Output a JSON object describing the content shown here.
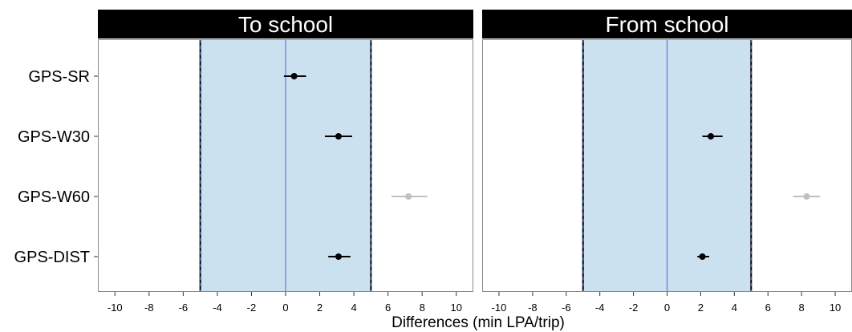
{
  "chart_data": {
    "type": "scatter",
    "subtype": "forest-plot-facets",
    "xlabel": "Differences (min LPA/trip)",
    "xlim": [
      -11,
      11
    ],
    "xticks": [
      -10,
      -8,
      -6,
      -4,
      -2,
      0,
      2,
      4,
      6,
      8,
      10
    ],
    "equivalence_band": [
      -5,
      5
    ],
    "reference_line": 0,
    "categories": [
      "GPS-SR",
      "GPS-W30",
      "GPS-W60",
      "GPS-DIST"
    ],
    "colors": {
      "band": "#cce1f0",
      "reference": "#5a7bd8",
      "point": "#000000",
      "point_outside": "#c0c0c0",
      "strip": "#000000",
      "strip_text": "#ffffff",
      "panel_border": "#8a8a8a"
    },
    "panels": [
      {
        "title": "To school",
        "points": [
          {
            "category": "GPS-SR",
            "estimate": 0.5,
            "lower": -0.1,
            "upper": 1.2,
            "within_band": true
          },
          {
            "category": "GPS-W30",
            "estimate": 3.1,
            "lower": 2.3,
            "upper": 3.9,
            "within_band": true
          },
          {
            "category": "GPS-W60",
            "estimate": 7.2,
            "lower": 6.2,
            "upper": 8.3,
            "within_band": false
          },
          {
            "category": "GPS-DIST",
            "estimate": 3.1,
            "lower": 2.5,
            "upper": 3.8,
            "within_band": true
          }
        ]
      },
      {
        "title": "From school",
        "points": [
          {
            "category": "GPS-W30",
            "estimate": 2.6,
            "lower": 2.1,
            "upper": 3.3,
            "within_band": true
          },
          {
            "category": "GPS-W60",
            "estimate": 8.3,
            "lower": 7.5,
            "upper": 9.1,
            "within_band": false
          },
          {
            "category": "GPS-DIST",
            "estimate": 2.1,
            "lower": 1.8,
            "upper": 2.5,
            "within_band": true
          }
        ]
      }
    ]
  }
}
